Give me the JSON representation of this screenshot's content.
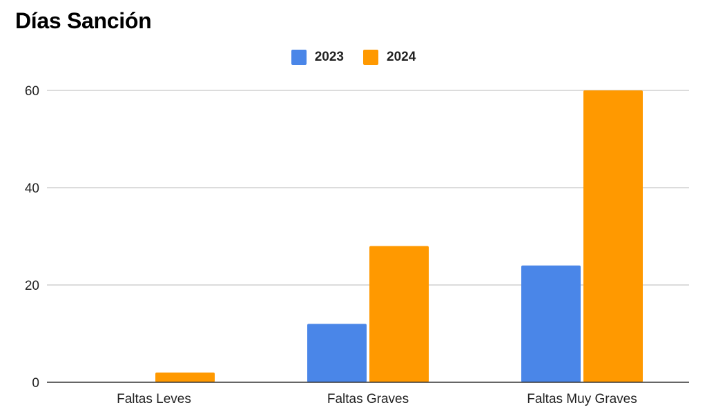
{
  "chart_data": {
    "type": "bar",
    "title": "Días Sanción",
    "categories": [
      "Faltas Leves",
      "Faltas Graves",
      "Faltas Muy Graves"
    ],
    "series": [
      {
        "name": "2023",
        "values": [
          0,
          12,
          24
        ],
        "color": "#4a86e8"
      },
      {
        "name": "2024",
        "values": [
          2,
          28,
          60
        ],
        "color": "#ff9900"
      }
    ],
    "xlabel": "",
    "ylabel": "",
    "ylim": [
      0,
      60
    ],
    "yticks": [
      0,
      20,
      40,
      60
    ],
    "grid": true,
    "legend_position": "top"
  }
}
